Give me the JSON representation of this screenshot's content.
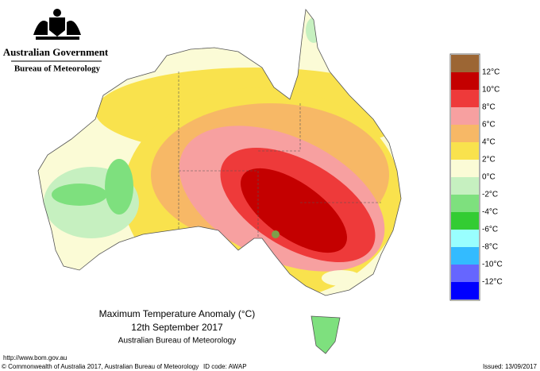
{
  "header": {
    "title": "Australian Government",
    "subtitle": "Bureau of Meteorology"
  },
  "legend": {
    "colors": [
      "#9c6634",
      "#c40000",
      "#ee3a3a",
      "#f7a0a0",
      "#f7b866",
      "#f9e24d",
      "#fbfbd6",
      "#c6f0c0",
      "#7ee07e",
      "#33cc33",
      "#99ffff",
      "#33bbff",
      "#6666ff",
      "#0000ff"
    ],
    "labels": [
      "12°C",
      "10°C",
      "8°C",
      "6°C",
      "4°C",
      "2°C",
      "0°C",
      "-2°C",
      "-4°C",
      "-6°C",
      "-8°C",
      "-10°C",
      "-12°C"
    ]
  },
  "map_title": {
    "line1": "Maximum Temperature Anomaly (°C)",
    "line2": "12th September 2017",
    "line3": "Australian Bureau of Meteorology"
  },
  "footer": {
    "url": "http://www.bom.gov.au",
    "copyright": "© Commonwealth of Australia 2017, Australian Bureau of Meteorology",
    "id_code": "ID code: AWAP",
    "issued": "Issued: 13/09/2017"
  }
}
